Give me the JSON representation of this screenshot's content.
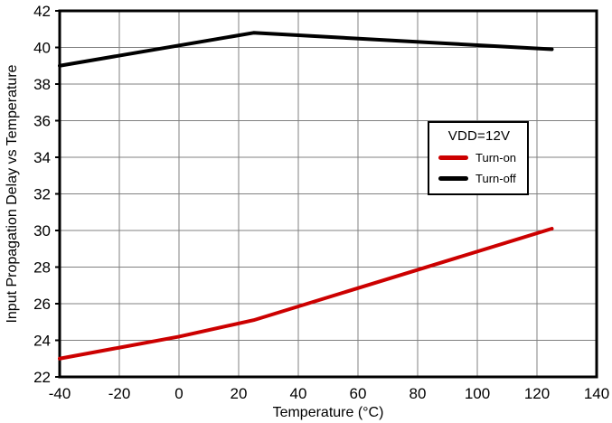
{
  "chart_data": {
    "type": "line",
    "title": "",
    "xlabel": "Temperature (°C)",
    "ylabel": "Input Propagation Delay vs Temperature",
    "xlim": [
      -40,
      140
    ],
    "ylim": [
      22,
      42
    ],
    "xticks": [
      -40,
      -20,
      0,
      20,
      40,
      60,
      80,
      100,
      120,
      140
    ],
    "yticks": [
      22,
      24,
      26,
      28,
      30,
      32,
      34,
      36,
      38,
      40,
      42
    ],
    "grid": true,
    "grid_color": "#808080",
    "frame_color": "#000000",
    "text_color": "#000000",
    "background": "#ffffff",
    "legend": {
      "title": "VDD=12V",
      "position": "middle-right"
    },
    "series": [
      {
        "name": "Turn-on",
        "color": "#cc0000",
        "points": [
          [
            -40,
            23.0
          ],
          [
            -20,
            23.6
          ],
          [
            0,
            24.2
          ],
          [
            25,
            25.1
          ],
          [
            125,
            30.1
          ]
        ]
      },
      {
        "name": "Turn-off",
        "color": "#000000",
        "points": [
          [
            -40,
            39.0
          ],
          [
            25,
            40.8
          ],
          [
            125,
            39.9
          ]
        ]
      }
    ]
  }
}
